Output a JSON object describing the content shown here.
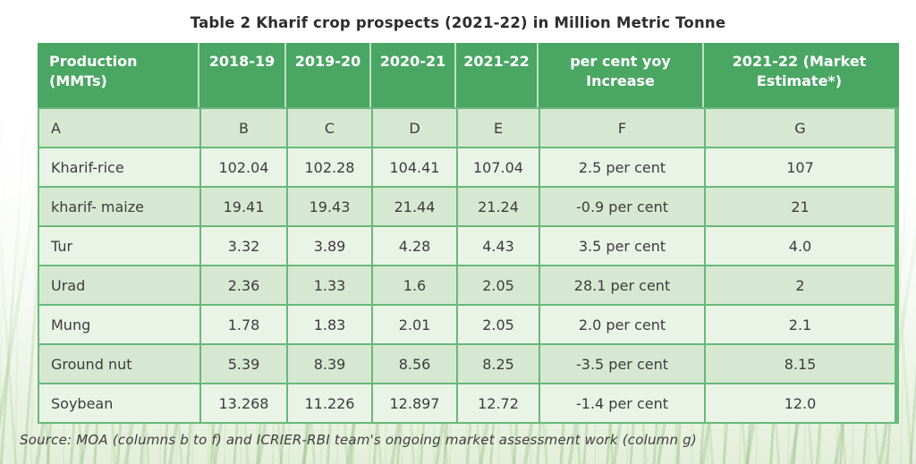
{
  "title": "Table 2 Kharif crop prospects (2021-22) in Million Metric Tonne",
  "table": {
    "columns": [
      "Production (MMTs)",
      "2018-19",
      "2019-20",
      "2020-21",
      "2021-22",
      "per cent yoy Increase",
      "2021-22 (Market Estimate*)"
    ],
    "letters": [
      "A",
      "B",
      "C",
      "D",
      "E",
      "F",
      "G"
    ],
    "rows": [
      {
        "name": "Kharif-rice",
        "values": [
          "102.04",
          "102.28",
          "104.41",
          "107.04",
          "2.5 per cent",
          "107"
        ]
      },
      {
        "name": "kharif- maize",
        "values": [
          "19.41",
          "19.43",
          "21.44",
          "21.24",
          "-0.9 per cent",
          "21"
        ]
      },
      {
        "name": "Tur",
        "values": [
          "3.32",
          "3.89",
          "4.28",
          "4.43",
          "3.5 per cent",
          "4.0"
        ]
      },
      {
        "name": "Urad",
        "values": [
          "2.36",
          "1.33",
          "1.6",
          "2.05",
          "28.1 per cent",
          "2"
        ]
      },
      {
        "name": "Mung",
        "values": [
          "1.78",
          "1.83",
          "2.01",
          "2.05",
          "2.0 per cent",
          "2.1"
        ]
      },
      {
        "name": "Ground nut",
        "values": [
          "5.39",
          "8.39",
          "8.56",
          "8.25",
          "-3.5 per cent",
          "8.15"
        ]
      },
      {
        "name": "Soybean",
        "values": [
          "13.268",
          "11.226",
          "12.897",
          "12.72",
          "-1.4 per cent",
          "12.0"
        ]
      }
    ]
  },
  "source": "Source: MOA (columns b to f) and ICRIER-RBI team's ongoing market assessment work (column g)",
  "colors": {
    "header_green": "#4aa663",
    "border_green": "#66b97a",
    "row_dark": "#d6e8d1",
    "row_light": "#eaf4e6",
    "text": "#3c3c3c"
  }
}
